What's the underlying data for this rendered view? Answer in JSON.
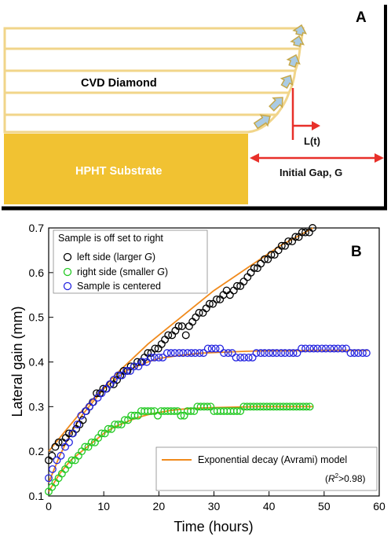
{
  "panel_a": {
    "label": "A",
    "cvd_label": "CVD Diamond",
    "substrate_label": "HPHT Substrate",
    "growth_label": "L(t)",
    "gap_label": "Initial Gap, G",
    "colors": {
      "substrate": "#f1c232",
      "layer_border": "#f1d58a",
      "arrow": "#e8302a",
      "growth_arrow_fill": "#aacbe4",
      "growth_arrow_stroke": "#c6a84a"
    }
  },
  "chart_data": {
    "type": "scatter",
    "label": "B",
    "xlabel": "Time (hours)",
    "ylabel": "Lateral gain (mm)",
    "xlim": [
      0,
      60
    ],
    "ylim": [
      0.1,
      0.7
    ],
    "xticks": [
      0,
      10,
      20,
      30,
      40,
      50,
      60
    ],
    "yticks": [
      0.1,
      0.2,
      0.3,
      0.4,
      0.5,
      0.6,
      0.7
    ],
    "xtick_labels": [
      "0",
      "10",
      "20",
      "30",
      "40",
      "50",
      "60"
    ],
    "ytick_labels": [
      "0.1",
      "0.2",
      "0.3",
      "0.4",
      "0.5",
      "0.6",
      "0.7"
    ],
    "grid": false,
    "legend": {
      "title": "Sample is off set to right",
      "placement": "top-left",
      "entries": [
        {
          "pre": "left side (larger ",
          "ital": "G",
          "post": ")"
        },
        {
          "pre": "right side (smaller ",
          "ital": "G",
          "post": ")"
        },
        {
          "pre": "Sample is centered",
          "ital": "",
          "post": ""
        }
      ]
    },
    "fit_legend": {
      "label": "Exponential decay (Avrami) model",
      "r2_ital": "R",
      "r2_sup": "2",
      "r2_post": ">0.98",
      "placement": "bottom-right"
    },
    "series": [
      {
        "color": "#000000",
        "x": [
          0,
          0.6,
          1.2,
          1.8,
          2.5,
          3.1,
          3.7,
          4.3,
          5.0,
          5.6,
          6.2,
          6.8,
          7.4,
          8.0,
          8.7,
          9.3,
          9.9,
          10.5,
          11.2,
          11.8,
          12.4,
          13.0,
          13.6,
          14.3,
          14.9,
          15.5,
          16.1,
          16.8,
          17.4,
          18.0,
          18.6,
          19.3,
          19.9,
          20.5,
          21.1,
          21.7,
          22.4,
          23.0,
          23.6,
          24.2,
          24.9,
          25.5,
          26.1,
          26.7,
          27.3,
          28.0,
          28.6,
          29.2,
          29.8,
          30.5,
          31.1,
          31.7,
          32.3,
          32.9,
          33.6,
          34.2,
          34.8,
          35.4,
          36.1,
          36.7,
          37.3,
          37.9,
          38.5,
          39.2,
          39.8,
          40.4,
          41.0,
          41.7,
          42.3,
          42.9,
          43.5,
          44.2,
          44.8,
          45.4,
          46.0,
          46.6,
          47.3,
          47.9
        ],
        "y": [
          0.18,
          0.19,
          0.21,
          0.22,
          0.22,
          0.23,
          0.24,
          0.24,
          0.25,
          0.26,
          0.27,
          0.29,
          0.3,
          0.31,
          0.33,
          0.33,
          0.34,
          0.34,
          0.35,
          0.35,
          0.36,
          0.37,
          0.38,
          0.38,
          0.39,
          0.39,
          0.4,
          0.4,
          0.41,
          0.42,
          0.42,
          0.43,
          0.43,
          0.44,
          0.45,
          0.46,
          0.46,
          0.47,
          0.48,
          0.48,
          0.46,
          0.48,
          0.49,
          0.5,
          0.51,
          0.51,
          0.52,
          0.53,
          0.53,
          0.54,
          0.54,
          0.55,
          0.56,
          0.55,
          0.56,
          0.57,
          0.57,
          0.58,
          0.59,
          0.6,
          0.61,
          0.61,
          0.62,
          0.63,
          0.63,
          0.64,
          0.64,
          0.65,
          0.66,
          0.66,
          0.67,
          0.67,
          0.68,
          0.68,
          0.69,
          0.69,
          0.69,
          0.7
        ]
      },
      {
        "color": "#22c922",
        "x": [
          0,
          0.6,
          1.2,
          1.8,
          2.4,
          3.0,
          3.6,
          4.2,
          4.8,
          5.4,
          6.0,
          6.6,
          7.2,
          7.8,
          8.4,
          9.0,
          9.6,
          10.2,
          10.8,
          11.4,
          12.0,
          12.6,
          13.2,
          13.8,
          14.4,
          15.0,
          15.6,
          16.2,
          16.8,
          17.4,
          18.0,
          18.6,
          19.2,
          19.8,
          20.4,
          21.0,
          21.6,
          22.2,
          22.8,
          23.4,
          24.0,
          24.6,
          25.2,
          25.8,
          26.4,
          27.0,
          27.6,
          28.2,
          28.8,
          29.4,
          30.0,
          30.6,
          31.2,
          31.8,
          32.4,
          33.0,
          33.6,
          34.2,
          34.8,
          35.4,
          36.0,
          36.6,
          37.2,
          37.8,
          38.4,
          39.0,
          39.6,
          40.2,
          40.8,
          41.4,
          42.0,
          42.6,
          43.2,
          43.8,
          44.4,
          45.0,
          45.6,
          46.2,
          46.8,
          47.4
        ],
        "y": [
          0.11,
          0.12,
          0.13,
          0.14,
          0.15,
          0.16,
          0.17,
          0.18,
          0.18,
          0.19,
          0.2,
          0.21,
          0.21,
          0.22,
          0.22,
          0.23,
          0.24,
          0.24,
          0.25,
          0.25,
          0.26,
          0.26,
          0.26,
          0.27,
          0.27,
          0.28,
          0.28,
          0.28,
          0.29,
          0.29,
          0.29,
          0.29,
          0.29,
          0.28,
          0.29,
          0.29,
          0.29,
          0.29,
          0.29,
          0.29,
          0.28,
          0.28,
          0.29,
          0.29,
          0.29,
          0.3,
          0.3,
          0.3,
          0.3,
          0.3,
          0.29,
          0.29,
          0.29,
          0.29,
          0.29,
          0.29,
          0.29,
          0.29,
          0.29,
          0.3,
          0.3,
          0.3,
          0.3,
          0.3,
          0.3,
          0.3,
          0.3,
          0.3,
          0.3,
          0.3,
          0.3,
          0.3,
          0.3,
          0.3,
          0.3,
          0.3,
          0.3,
          0.3,
          0.3,
          0.3
        ]
      },
      {
        "color": "#2525e0",
        "x": [
          0,
          0.7,
          1.5,
          2.2,
          3.0,
          3.7,
          4.4,
          5.2,
          5.9,
          6.7,
          7.4,
          8.1,
          8.9,
          9.6,
          10.4,
          11.1,
          11.8,
          12.6,
          13.3,
          14.1,
          14.8,
          15.5,
          16.3,
          17.0,
          17.8,
          18.5,
          19.2,
          20.0,
          20.7,
          21.5,
          22.2,
          22.9,
          23.7,
          24.4,
          25.2,
          25.9,
          26.6,
          27.4,
          28.1,
          28.9,
          29.6,
          30.3,
          31.1,
          31.8,
          32.6,
          33.3,
          34.0,
          34.8,
          35.5,
          36.3,
          37.0,
          37.7,
          38.5,
          39.2,
          40.0,
          40.7,
          41.4,
          42.2,
          42.9,
          43.7,
          44.4,
          45.1,
          45.9,
          46.6,
          47.4,
          48.1,
          48.8,
          49.6,
          50.3,
          51.1,
          51.8,
          52.5,
          53.3,
          54.0,
          54.8,
          55.5,
          56.2,
          57.0,
          57.7
        ],
        "y": [
          0.14,
          0.16,
          0.18,
          0.19,
          0.21,
          0.22,
          0.24,
          0.26,
          0.28,
          0.29,
          0.3,
          0.31,
          0.32,
          0.33,
          0.34,
          0.35,
          0.36,
          0.37,
          0.37,
          0.38,
          0.38,
          0.39,
          0.39,
          0.4,
          0.4,
          0.41,
          0.41,
          0.41,
          0.41,
          0.42,
          0.42,
          0.42,
          0.42,
          0.42,
          0.42,
          0.42,
          0.42,
          0.42,
          0.42,
          0.43,
          0.43,
          0.43,
          0.43,
          0.42,
          0.42,
          0.42,
          0.41,
          0.41,
          0.41,
          0.41,
          0.41,
          0.42,
          0.42,
          0.42,
          0.42,
          0.42,
          0.42,
          0.42,
          0.42,
          0.42,
          0.42,
          0.42,
          0.43,
          0.43,
          0.43,
          0.43,
          0.43,
          0.43,
          0.43,
          0.43,
          0.43,
          0.43,
          0.43,
          0.43,
          0.42,
          0.42,
          0.42,
          0.42,
          0.42
        ]
      }
    ],
    "fits": [
      {
        "color": "#f08a1c",
        "x": [
          0,
          3,
          6,
          9,
          12,
          15,
          18,
          21,
          24,
          27,
          30,
          33,
          36,
          39,
          42,
          45,
          48
        ],
        "y": [
          0.2,
          0.245,
          0.29,
          0.33,
          0.37,
          0.405,
          0.44,
          0.47,
          0.5,
          0.53,
          0.56,
          0.585,
          0.61,
          0.635,
          0.66,
          0.68,
          0.7
        ]
      },
      {
        "color": "#f08a1c",
        "x": [
          0,
          2,
          4,
          6,
          8,
          10,
          12,
          14,
          16,
          18,
          20,
          22,
          24,
          26,
          28,
          30,
          34,
          38,
          42,
          46,
          48
        ],
        "y": [
          0.11,
          0.15,
          0.18,
          0.2,
          0.22,
          0.24,
          0.255,
          0.265,
          0.275,
          0.282,
          0.287,
          0.291,
          0.294,
          0.296,
          0.297,
          0.298,
          0.299,
          0.3,
          0.3,
          0.3,
          0.3
        ]
      },
      {
        "color": "#f08a1c",
        "x": [
          0,
          2,
          4,
          6,
          8,
          10,
          12,
          14,
          16,
          18,
          20,
          24,
          28,
          32,
          36,
          40,
          44,
          48,
          52,
          56,
          58
        ],
        "y": [
          0.13,
          0.19,
          0.24,
          0.28,
          0.31,
          0.34,
          0.36,
          0.38,
          0.39,
          0.4,
          0.408,
          0.415,
          0.42,
          0.422,
          0.424,
          0.425,
          0.425,
          0.426,
          0.426,
          0.426,
          0.426
        ]
      }
    ]
  }
}
